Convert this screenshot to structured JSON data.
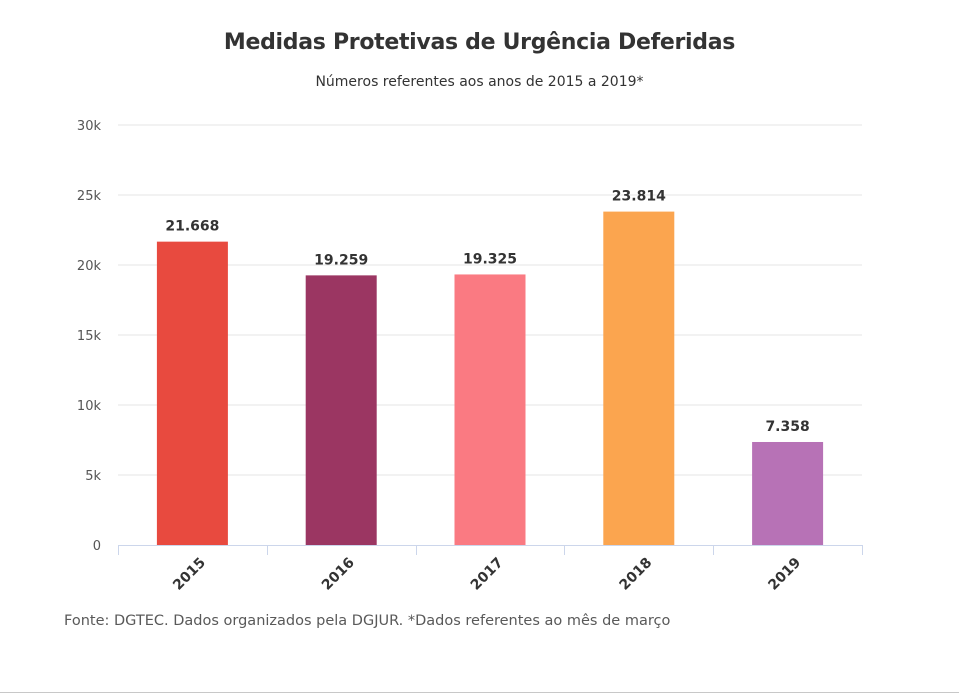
{
  "chart_data": {
    "type": "bar",
    "title": "Medidas Protetivas de Urgência Deferidas",
    "subtitle": "Números referentes aos anos de 2015 a 2019*",
    "xlabel": "",
    "ylabel": "",
    "categories": [
      "2015",
      "2016",
      "2017",
      "2018",
      "2019"
    ],
    "values": [
      21668,
      19259,
      19325,
      23814,
      7358
    ],
    "value_labels": [
      "21.668",
      "19.259",
      "19.325",
      "23.814",
      "7.358"
    ],
    "colors": [
      "#e84a3f",
      "#9b3662",
      "#fa7a82",
      "#fba54f",
      "#b772b6"
    ],
    "ylim": [
      0,
      30000
    ],
    "yticks": [
      0,
      5000,
      10000,
      15000,
      20000,
      25000,
      30000
    ],
    "ytick_labels": [
      "0",
      "5k",
      "10k",
      "15k",
      "20k",
      "25k",
      "30k"
    ],
    "grid": true,
    "legend": "none"
  },
  "footer": {
    "source": "Fonte: DGTEC. Dados organizados pela DGJUR. *Dados referentes ao mês de março"
  }
}
